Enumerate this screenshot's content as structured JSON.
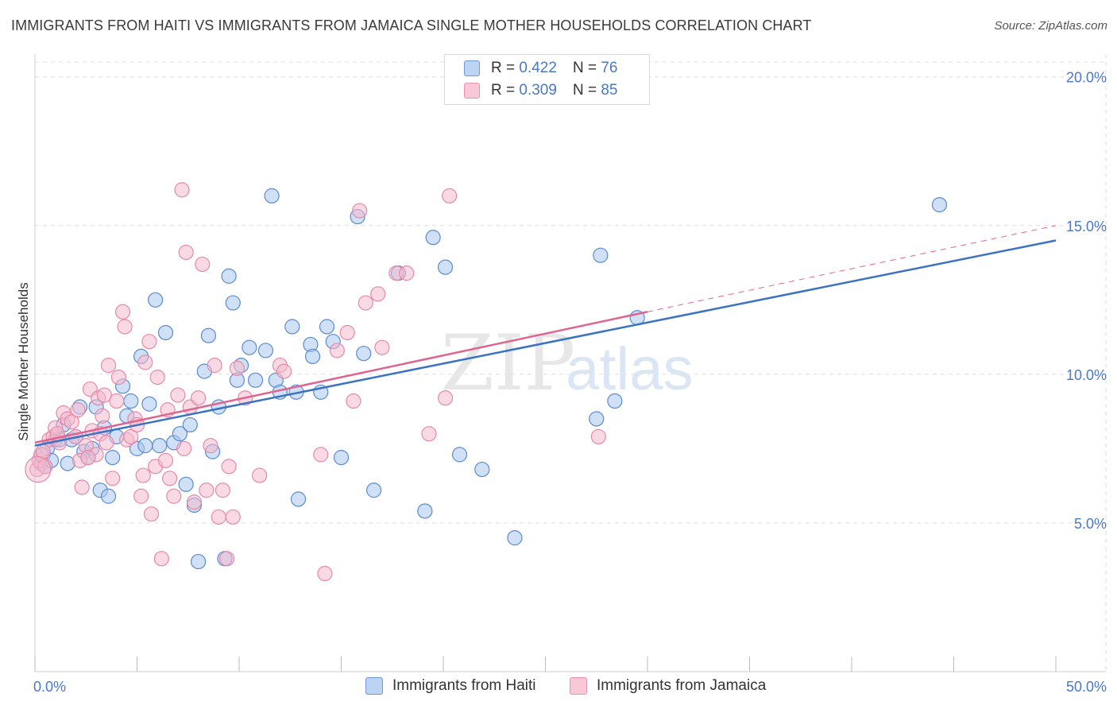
{
  "title": "IMMIGRANTS FROM HAITI VS IMMIGRANTS FROM JAMAICA SINGLE MOTHER HOUSEHOLDS CORRELATION CHART",
  "source": "Source: ZipAtlas.com",
  "watermark": {
    "part1": "ZIP",
    "part2": "atlas"
  },
  "legend": {
    "rows": [
      {
        "r_label": "R =",
        "r_value": "0.422",
        "n_label": "N =",
        "n_value": "76"
      },
      {
        "r_label": "R =",
        "r_value": "0.309",
        "n_label": "N =",
        "n_value": "85"
      }
    ]
  },
  "bottom_legend": [
    "Immigrants from Haiti",
    "Immigrants from Jamaica"
  ],
  "colors": {
    "haiti_fill": "#a9c6ef",
    "haiti_stroke": "#5b8bd0",
    "haiti_line": "#3a72c4",
    "jamaica_fill": "#f4b9cc",
    "jamaica_stroke": "#e58aa8",
    "jamaica_line": "#e0648f",
    "grid": "#dddddd",
    "tick_text": "#4a78c8"
  },
  "chart_data": {
    "type": "scatter",
    "title": "IMMIGRANTS FROM HAITI VS IMMIGRANTS FROM JAMAICA SINGLE MOTHER HOUSEHOLDS CORRELATION CHART",
    "xlabel": "",
    "ylabel": "Single Mother Households",
    "xlim": [
      0,
      50
    ],
    "ylim": [
      0,
      20.5
    ],
    "x_tick_labels": [
      "0.0%",
      "50.0%"
    ],
    "y_ticks": [
      5,
      10,
      15,
      20
    ],
    "y_tick_labels": [
      "5.0%",
      "10.0%",
      "15.0%",
      "20.0%"
    ],
    "grid": true,
    "legend_position": "top-center",
    "series": [
      {
        "name": "Immigrants from Haiti",
        "r": 0.422,
        "n": 76,
        "trend": {
          "x": [
            0,
            50
          ],
          "y": [
            7.6,
            14.5
          ]
        },
        "points": [
          [
            0.3,
            7.0
          ],
          [
            0.4,
            7.3
          ],
          [
            0.5,
            6.9
          ],
          [
            0.6,
            7.5
          ],
          [
            0.8,
            7.1
          ],
          [
            1.0,
            7.8
          ],
          [
            1.2,
            7.8
          ],
          [
            1.4,
            8.3
          ],
          [
            1.6,
            7.0
          ],
          [
            1.8,
            7.8
          ],
          [
            2.0,
            7.9
          ],
          [
            2.2,
            8.9
          ],
          [
            2.4,
            7.4
          ],
          [
            2.6,
            7.2
          ],
          [
            2.8,
            7.5
          ],
          [
            3.0,
            8.9
          ],
          [
            3.2,
            6.1
          ],
          [
            3.4,
            8.2
          ],
          [
            3.6,
            5.9
          ],
          [
            3.8,
            7.2
          ],
          [
            4.0,
            7.9
          ],
          [
            4.3,
            9.6
          ],
          [
            4.5,
            8.6
          ],
          [
            4.7,
            9.1
          ],
          [
            5.0,
            7.5
          ],
          [
            5.2,
            10.6
          ],
          [
            5.4,
            7.6
          ],
          [
            5.6,
            9.0
          ],
          [
            5.9,
            12.5
          ],
          [
            6.1,
            7.6
          ],
          [
            6.4,
            11.4
          ],
          [
            6.8,
            7.7
          ],
          [
            7.1,
            8.0
          ],
          [
            7.4,
            6.3
          ],
          [
            7.6,
            8.3
          ],
          [
            7.8,
            5.6
          ],
          [
            8.0,
            3.7
          ],
          [
            8.3,
            10.1
          ],
          [
            8.5,
            11.3
          ],
          [
            8.7,
            7.4
          ],
          [
            9.0,
            8.9
          ],
          [
            9.3,
            3.8
          ],
          [
            9.5,
            13.3
          ],
          [
            9.7,
            12.4
          ],
          [
            9.9,
            9.8
          ],
          [
            10.1,
            10.3
          ],
          [
            10.5,
            10.9
          ],
          [
            10.8,
            9.8
          ],
          [
            11.3,
            10.8
          ],
          [
            11.6,
            16.0
          ],
          [
            11.8,
            9.8
          ],
          [
            12.0,
            9.4
          ],
          [
            12.6,
            11.6
          ],
          [
            12.8,
            9.4
          ],
          [
            12.9,
            5.8
          ],
          [
            13.5,
            11.0
          ],
          [
            13.6,
            10.6
          ],
          [
            14.0,
            9.4
          ],
          [
            14.3,
            11.6
          ],
          [
            14.6,
            11.1
          ],
          [
            15.0,
            7.2
          ],
          [
            15.8,
            15.3
          ],
          [
            16.1,
            10.7
          ],
          [
            16.6,
            6.1
          ],
          [
            17.8,
            13.4
          ],
          [
            19.1,
            5.4
          ],
          [
            19.5,
            14.6
          ],
          [
            20.1,
            13.6
          ],
          [
            20.8,
            7.3
          ],
          [
            21.9,
            6.8
          ],
          [
            23.5,
            4.5
          ],
          [
            27.5,
            8.5
          ],
          [
            27.7,
            14.0
          ],
          [
            28.4,
            9.1
          ],
          [
            29.5,
            11.9
          ],
          [
            44.3,
            15.7
          ]
        ]
      },
      {
        "name": "Immigrants from Jamaica",
        "r": 0.309,
        "n": 85,
        "trend": {
          "x": [
            0,
            30
          ],
          "y": [
            7.7,
            12.1
          ]
        },
        "trend_extension": {
          "x": [
            30,
            50
          ],
          "y": [
            12.1,
            15.0
          ]
        },
        "points": [
          [
            0.1,
            6.8
          ],
          [
            0.2,
            7.1
          ],
          [
            0.3,
            7.3
          ],
          [
            0.5,
            6.9
          ],
          [
            0.7,
            7.8
          ],
          [
            0.9,
            7.9
          ],
          [
            1.0,
            8.2
          ],
          [
            1.2,
            7.7
          ],
          [
            1.4,
            8.7
          ],
          [
            1.6,
            8.5
          ],
          [
            1.8,
            8.4
          ],
          [
            2.0,
            7.9
          ],
          [
            2.2,
            7.1
          ],
          [
            2.3,
            6.2
          ],
          [
            2.5,
            7.6
          ],
          [
            2.7,
            9.5
          ],
          [
            2.8,
            8.1
          ],
          [
            3.0,
            7.3
          ],
          [
            3.1,
            9.2
          ],
          [
            3.2,
            8.0
          ],
          [
            3.4,
            9.3
          ],
          [
            3.5,
            7.7
          ],
          [
            3.6,
            10.3
          ],
          [
            3.8,
            6.5
          ],
          [
            4.0,
            9.1
          ],
          [
            4.1,
            9.9
          ],
          [
            4.3,
            12.1
          ],
          [
            4.4,
            11.6
          ],
          [
            4.5,
            7.8
          ],
          [
            4.7,
            7.9
          ],
          [
            4.9,
            8.5
          ],
          [
            5.0,
            8.3
          ],
          [
            5.2,
            5.9
          ],
          [
            5.4,
            10.4
          ],
          [
            5.6,
            11.1
          ],
          [
            5.7,
            5.3
          ],
          [
            5.9,
            6.9
          ],
          [
            6.0,
            9.9
          ],
          [
            6.2,
            3.8
          ],
          [
            6.4,
            7.1
          ],
          [
            6.6,
            6.5
          ],
          [
            6.8,
            5.9
          ],
          [
            7.0,
            9.3
          ],
          [
            7.2,
            16.2
          ],
          [
            7.4,
            14.1
          ],
          [
            7.6,
            8.9
          ],
          [
            7.8,
            5.7
          ],
          [
            8.0,
            9.2
          ],
          [
            8.2,
            13.7
          ],
          [
            8.4,
            6.1
          ],
          [
            8.6,
            7.6
          ],
          [
            8.8,
            10.3
          ],
          [
            9.0,
            5.2
          ],
          [
            9.2,
            6.1
          ],
          [
            9.4,
            3.8
          ],
          [
            9.5,
            6.9
          ],
          [
            9.7,
            5.2
          ],
          [
            9.9,
            10.2
          ],
          [
            10.3,
            9.2
          ],
          [
            11.0,
            6.6
          ],
          [
            12.0,
            10.3
          ],
          [
            12.2,
            10.1
          ],
          [
            14.0,
            7.3
          ],
          [
            14.2,
            3.3
          ],
          [
            14.8,
            10.8
          ],
          [
            15.3,
            11.4
          ],
          [
            15.6,
            9.1
          ],
          [
            15.9,
            15.5
          ],
          [
            16.2,
            12.4
          ],
          [
            16.8,
            12.7
          ],
          [
            17.0,
            10.9
          ],
          [
            17.7,
            13.4
          ],
          [
            18.2,
            13.4
          ],
          [
            19.3,
            8.0
          ],
          [
            20.1,
            9.2
          ],
          [
            20.3,
            16.0
          ],
          [
            27.6,
            7.9
          ],
          [
            0.4,
            7.4
          ],
          [
            1.1,
            8.0
          ],
          [
            2.1,
            8.8
          ],
          [
            3.3,
            8.6
          ],
          [
            5.3,
            6.6
          ],
          [
            6.5,
            8.8
          ],
          [
            7.3,
            7.5
          ],
          [
            2.6,
            7.2
          ]
        ]
      }
    ]
  }
}
